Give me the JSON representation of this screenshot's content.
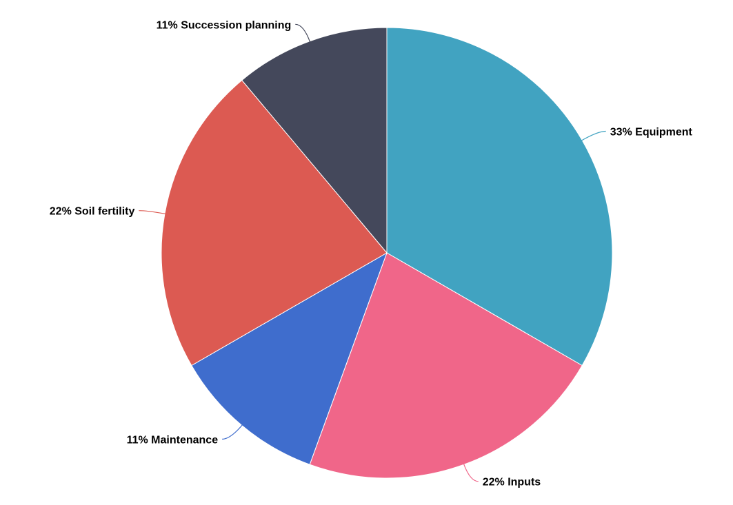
{
  "chart_data": {
    "type": "pie",
    "title": "",
    "slices": [
      {
        "label": "Equipment",
        "percent": 33,
        "display": "33% Equipment",
        "color": "#41a3c1"
      },
      {
        "label": "Inputs",
        "percent": 22,
        "display": "22% Inputs",
        "color": "#f06689"
      },
      {
        "label": "Maintenance",
        "percent": 11,
        "display": "11% Maintenance",
        "color": "#3f6dcd"
      },
      {
        "label": "Soil fertility",
        "percent": 22,
        "display": "22% Soil fertility",
        "color": "#dc5a52"
      },
      {
        "label": "Succession planning",
        "percent": 11,
        "display": "11% Succession planning",
        "color": "#44485b"
      }
    ],
    "start_angle_deg": 0,
    "direction": "clockwise",
    "legend": "none",
    "labels": "outside-with-leader-lines"
  }
}
